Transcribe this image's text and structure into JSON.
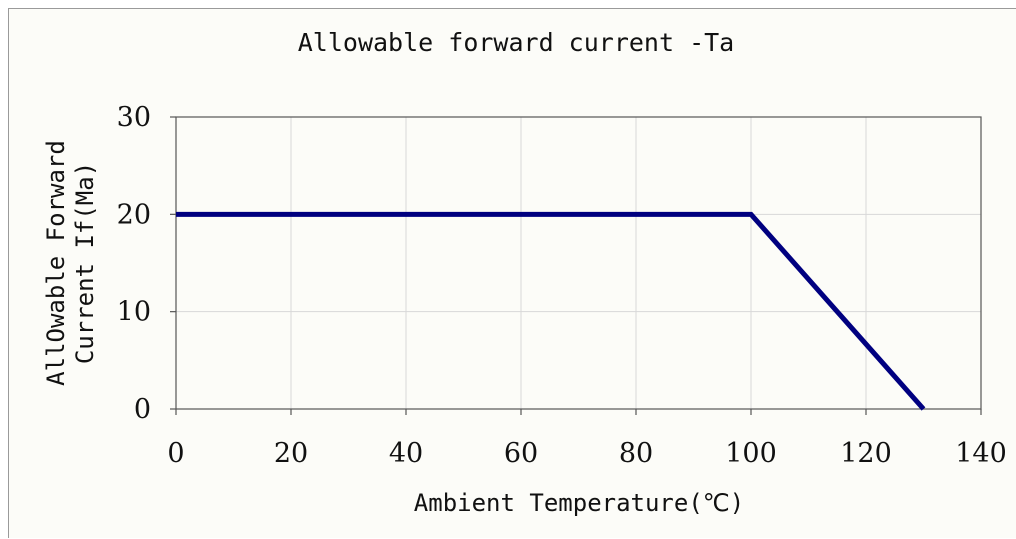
{
  "chart_data": {
    "type": "line",
    "title": "Allowable forward current -Ta",
    "xlabel": "Ambient Temperature(℃)",
    "ylabel_lines": [
      "AllOwable Forward",
      "Current If(Ma)"
    ],
    "xlim": [
      0,
      140
    ],
    "ylim": [
      0,
      30
    ],
    "x_ticks": [
      0,
      20,
      40,
      60,
      80,
      100,
      120,
      140
    ],
    "y_ticks": [
      0,
      10,
      20,
      30
    ],
    "grid": true,
    "series": [
      {
        "x": [
          0,
          100,
          130
        ],
        "y": [
          20,
          20,
          0
        ],
        "color": "#000080"
      }
    ]
  }
}
